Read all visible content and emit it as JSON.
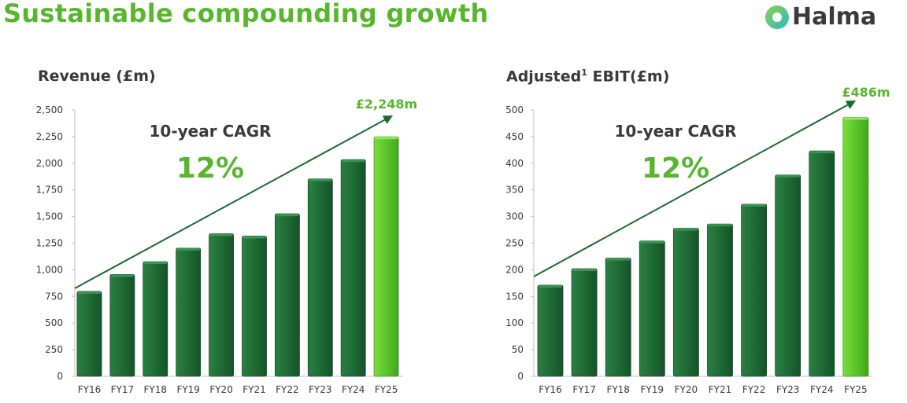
{
  "page": {
    "title": "Sustainable compounding growth",
    "logo_text": "Halma"
  },
  "colors": {
    "bar_dark": "#1f6b35",
    "bar_highlight": "#5ac62a",
    "trend": "#1d6a30",
    "accent": "#58b62d"
  },
  "chart_data": [
    {
      "type": "bar",
      "title_main": "Revenue (£m)",
      "categories": [
        "FY16",
        "FY17",
        "FY18",
        "FY19",
        "FY20",
        "FY21",
        "FY22",
        "FY23",
        "FY24",
        "FY25"
      ],
      "values": [
        797,
        956,
        1076,
        1203,
        1338,
        1316,
        1525,
        1853,
        2034,
        2248
      ],
      "ylim": [
        0,
        2500
      ],
      "yticks": [
        0,
        250,
        500,
        750,
        1000,
        1250,
        1500,
        1750,
        2000,
        2250,
        2500
      ],
      "ytick_labels": [
        "0",
        "250",
        "500",
        "750",
        "1,000",
        "1,250",
        "1,500",
        "1,750",
        "2,000",
        "2,250",
        "2,500"
      ],
      "highlight_index": 9,
      "cagr_label": "10-year CAGR",
      "cagr_value": "12%",
      "final_label": "£2,248m"
    },
    {
      "type": "bar",
      "title_main": "Adjusted",
      "title_sup": "1",
      "title_rest": " EBIT(£m)",
      "categories": [
        "FY16",
        "FY17",
        "FY18",
        "FY19",
        "FY20",
        "FY21",
        "FY22",
        "FY23",
        "FY24",
        "FY25"
      ],
      "values": [
        171,
        202,
        222,
        254,
        278,
        286,
        323,
        378,
        423,
        486
      ],
      "ylim": [
        0,
        500
      ],
      "yticks": [
        0,
        50,
        100,
        150,
        200,
        250,
        300,
        350,
        400,
        450,
        500
      ],
      "ytick_labels": [
        "0",
        "50",
        "100",
        "150",
        "200",
        "250",
        "300",
        "350",
        "400",
        "450",
        "500"
      ],
      "highlight_index": 9,
      "cagr_label": "10-year CAGR",
      "cagr_value": "12%",
      "final_label": "£486m"
    }
  ]
}
